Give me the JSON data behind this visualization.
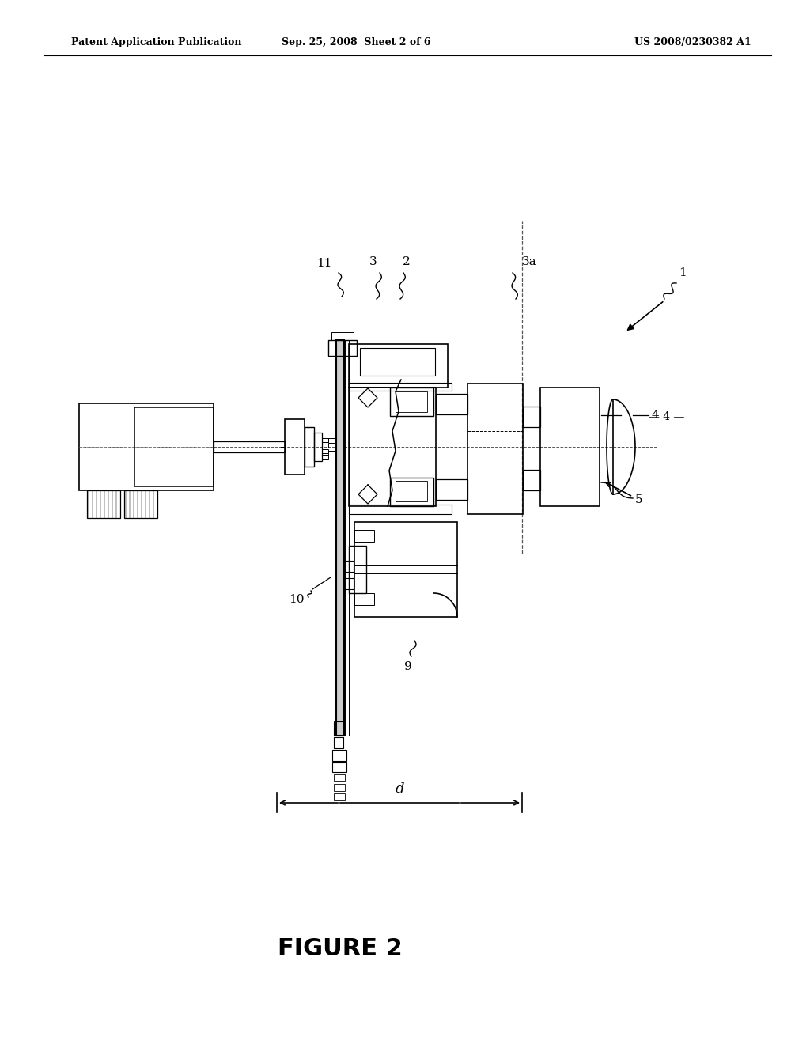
{
  "bg_color": "#ffffff",
  "line_color": "#000000",
  "title": "FIGURE 2",
  "header_left": "Patent Application Publication",
  "header_mid": "Sep. 25, 2008  Sheet 2 of 6",
  "header_right": "US 2008/0230382 A1",
  "fig_width": 10.24,
  "fig_height": 13.2,
  "dpi": 100
}
